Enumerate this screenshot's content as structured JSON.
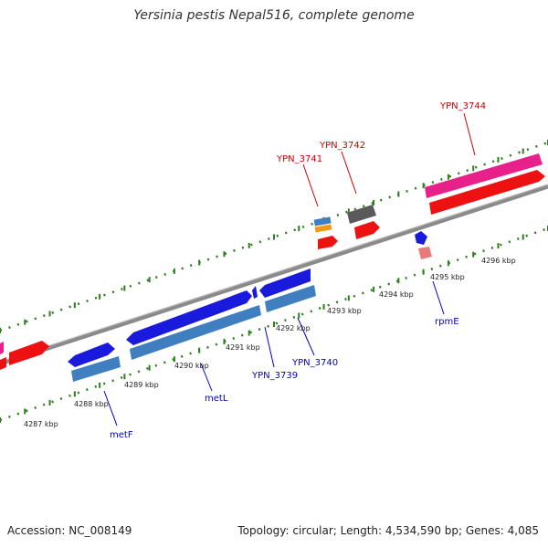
{
  "title": "Yersinia pestis Nepal516, complete genome",
  "footer": {
    "accession": "Accession: NC_008149",
    "summary": "Topology: circular; Length: 4,534,590 bp; Genes: 4,085"
  },
  "colors": {
    "backbone": "#8a8a8a",
    "tick": "#2e7d1e",
    "blue_gene": "#1a1adc",
    "steelblue": "#3f7fc0",
    "red_gene": "#ee1111",
    "pink_gene": "#e8208a",
    "grey_gene": "#5a5a5a",
    "orange_gene": "#f19a1a",
    "salmon_gene": "#e87a7a",
    "label_blue": "#0000cc",
    "label_red": "#cc0000"
  },
  "scale_labels": [
    "4287 kbp",
    "4288 kbp",
    "4289 kbp",
    "4290 kbp",
    "4291 kbp",
    "4292 kbp",
    "4293 kbp",
    "4294 kbp",
    "4295 kbp",
    "4296 kbp"
  ],
  "gene_labels": {
    "metF": "metF",
    "metL": "metL",
    "ypn3739": "YPN_3739",
    "ypn3740": "YPN_3740",
    "rpmE": "rpmE",
    "ypn3741": "YPN_3741",
    "ypn3742": "YPN_3742",
    "ypn3744": "YPN_3744"
  }
}
